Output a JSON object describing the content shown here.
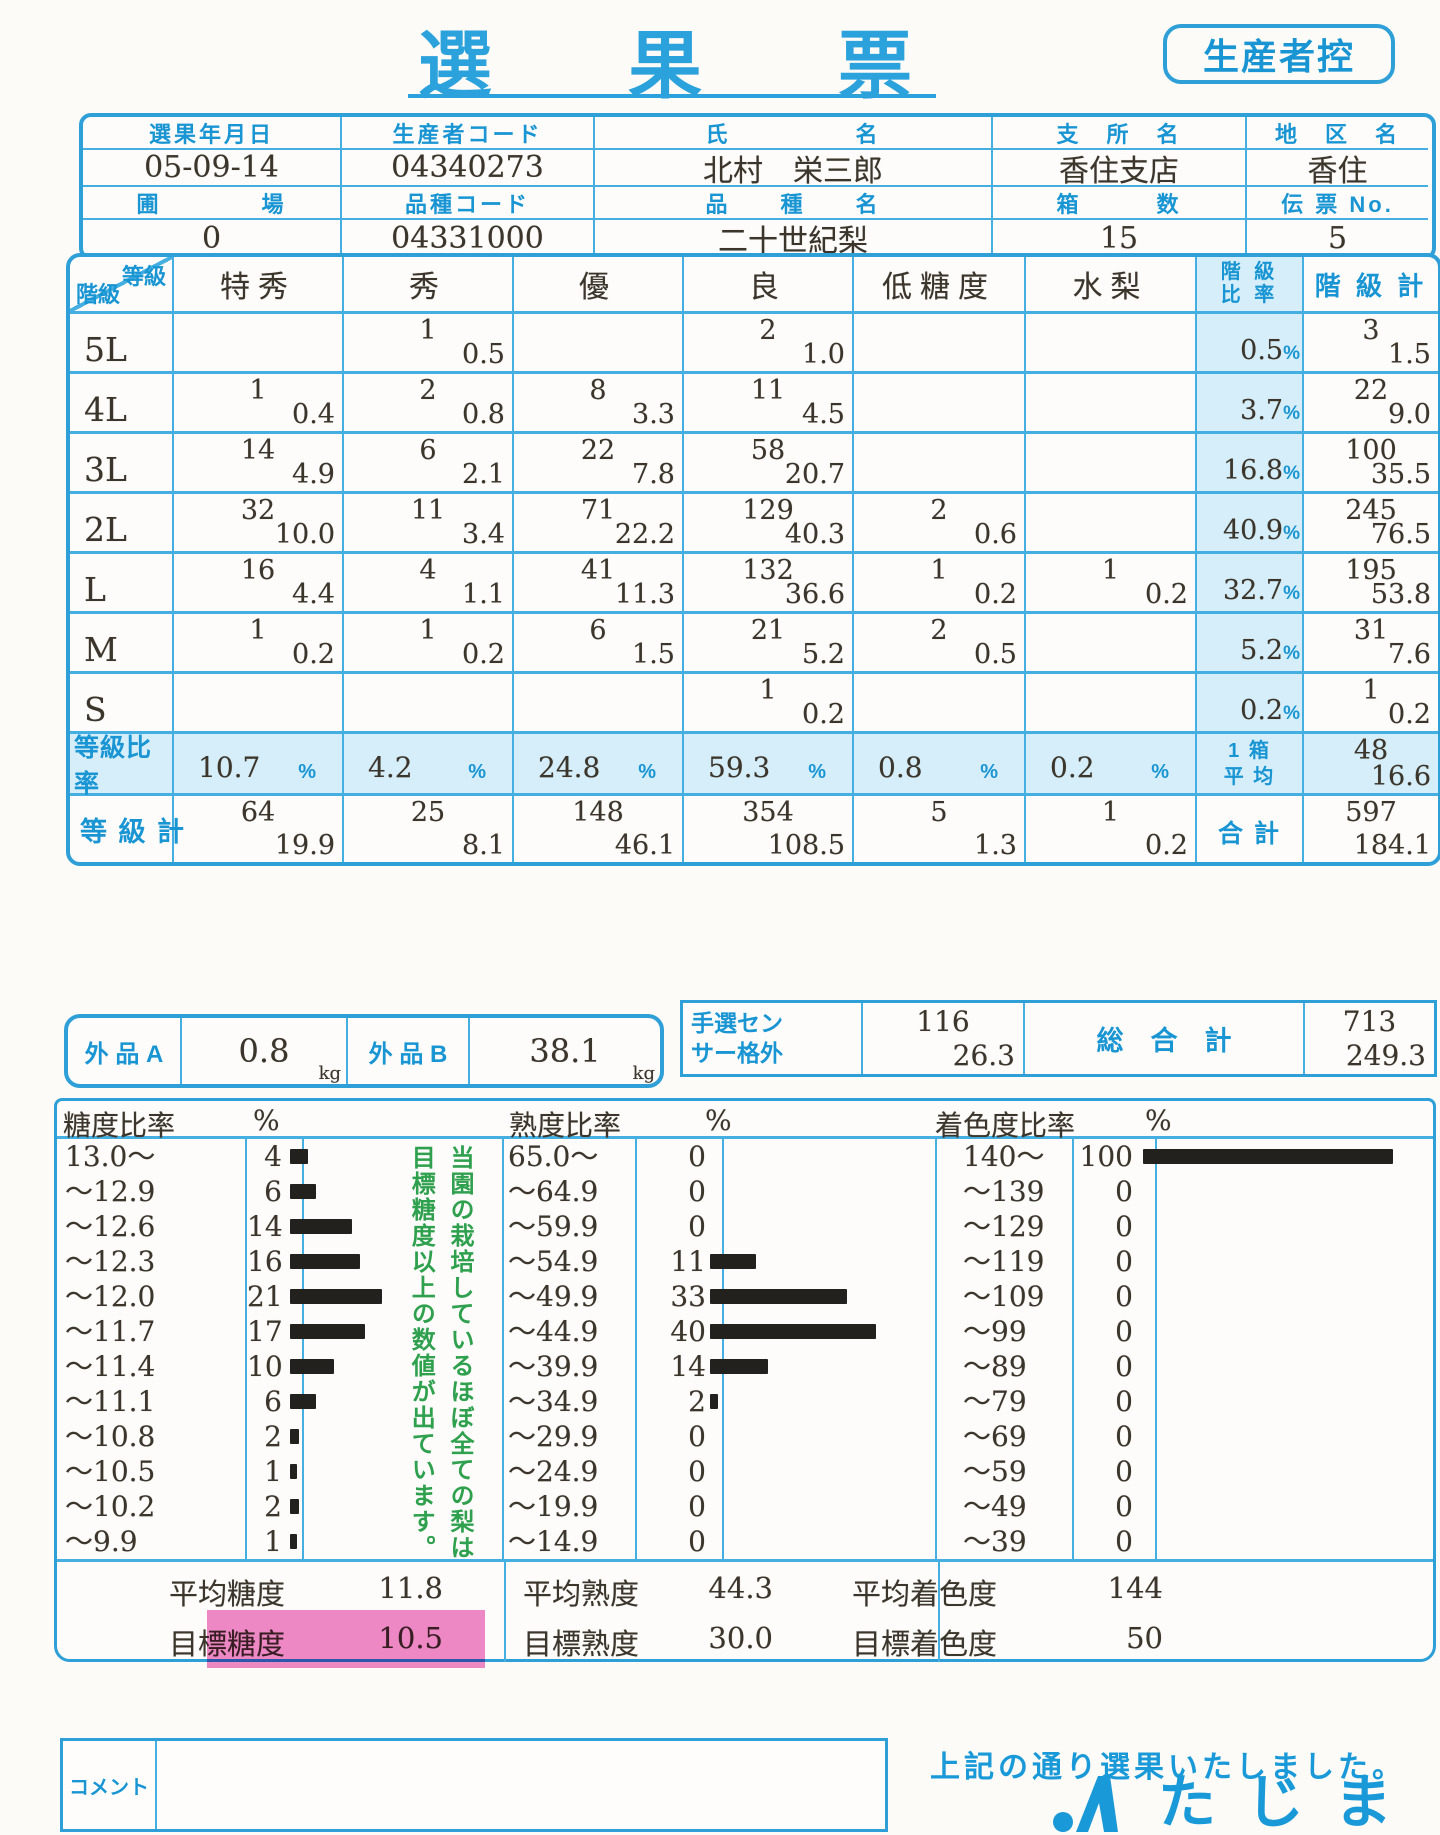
{
  "page": {
    "title": "選果票",
    "copy_badge": "生産者控"
  },
  "info": {
    "labels1": [
      "選果年月日",
      "生産者コード",
      "氏　　　　　名",
      "支　所　名",
      "地　区　名"
    ],
    "values1": [
      "05-09-14",
      "04340273",
      "北村　栄三郎",
      "香住支店",
      "香住"
    ],
    "labels2": [
      "圃　　　　場",
      "品種コード",
      "品　　種　　名",
      "箱　　　数",
      "伝 票 No."
    ],
    "values2": [
      "0",
      "04331000",
      "二十世紀梨",
      "15",
      "5"
    ]
  },
  "grade_table": {
    "corner_top": "等級",
    "corner_bottom": "階級",
    "grade_headers": [
      "特秀",
      "秀",
      "優",
      "良",
      "低糖度",
      "水梨"
    ],
    "ratio_header_lines": [
      "階 級",
      "比 率"
    ],
    "row_total_header": "階 級 計",
    "rows": [
      {
        "label": "5L",
        "cells": [
          null,
          [
            "1",
            "0.5"
          ],
          null,
          [
            "2",
            "1.0"
          ],
          null,
          null
        ],
        "ratio": "0.5",
        "total": [
          "3",
          "1.5"
        ]
      },
      {
        "label": "4L",
        "cells": [
          [
            "1",
            "0.4"
          ],
          [
            "2",
            "0.8"
          ],
          [
            "8",
            "3.3"
          ],
          [
            "11",
            "4.5"
          ],
          null,
          null
        ],
        "ratio": "3.7",
        "total": [
          "22",
          "9.0"
        ]
      },
      {
        "label": "3L",
        "cells": [
          [
            "14",
            "4.9"
          ],
          [
            "6",
            "2.1"
          ],
          [
            "22",
            "7.8"
          ],
          [
            "58",
            "20.7"
          ],
          null,
          null
        ],
        "ratio": "16.8",
        "total": [
          "100",
          "35.5"
        ]
      },
      {
        "label": "2L",
        "cells": [
          [
            "32",
            "10.0"
          ],
          [
            "11",
            "3.4"
          ],
          [
            "71",
            "22.2"
          ],
          [
            "129",
            "40.3"
          ],
          [
            "2",
            "0.6"
          ],
          null
        ],
        "ratio": "40.9",
        "total": [
          "245",
          "76.5"
        ]
      },
      {
        "label": "L",
        "cells": [
          [
            "16",
            "4.4"
          ],
          [
            "4",
            "1.1"
          ],
          [
            "41",
            "11.3"
          ],
          [
            "132",
            "36.6"
          ],
          [
            "1",
            "0.2"
          ],
          [
            "1",
            "0.2"
          ]
        ],
        "ratio": "32.7",
        "total": [
          "195",
          "53.8"
        ]
      },
      {
        "label": "M",
        "cells": [
          [
            "1",
            "0.2"
          ],
          [
            "1",
            "0.2"
          ],
          [
            "6",
            "1.5"
          ],
          [
            "21",
            "5.2"
          ],
          [
            "2",
            "0.5"
          ],
          null
        ],
        "ratio": "5.2",
        "total": [
          "31",
          "7.6"
        ]
      },
      {
        "label": "S",
        "cells": [
          null,
          null,
          null,
          [
            "1",
            "0.2"
          ],
          null,
          null
        ],
        "ratio": "0.2",
        "total": [
          "1",
          "0.2"
        ]
      }
    ],
    "ratio_row": {
      "label": "等級比率",
      "values": [
        "10.7",
        "4.2",
        "24.8",
        "59.3",
        "0.8",
        "0.2"
      ],
      "per_box_lines": [
        "1 箱",
        "平 均"
      ],
      "per_box": [
        "48",
        "16.6"
      ]
    },
    "total_row": {
      "label": "等 級 計",
      "cells": [
        [
          "64",
          "19.9"
        ],
        [
          "25",
          "8.1"
        ],
        [
          "148",
          "46.1"
        ],
        [
          "354",
          "108.5"
        ],
        [
          "5",
          "1.3"
        ],
        [
          "1",
          "0.2"
        ]
      ],
      "sum_label": "合 計",
      "sum": [
        "597",
        "184.1"
      ]
    }
  },
  "offgrade": {
    "a_label": "外 品 A",
    "a_value": "0.8",
    "a_unit": "kg",
    "b_label": "外 品 B",
    "b_value": "38.1",
    "b_unit": "kg",
    "hand_lines": [
      "手選セン",
      "サー格外"
    ],
    "hand_values": [
      "116",
      "26.3"
    ],
    "grand_label": "総　合　計",
    "grand_values": [
      "713",
      "249.3"
    ]
  },
  "histograms": {
    "sugar": {
      "title": "糖度比率",
      "unit": "%",
      "rows": [
        [
          "13.0～",
          4
        ],
        [
          "～12.9",
          6
        ],
        [
          "～12.6",
          14
        ],
        [
          "～12.3",
          16
        ],
        [
          "～12.0",
          21
        ],
        [
          "～11.7",
          17
        ],
        [
          "～11.4",
          10
        ],
        [
          "～11.1",
          6
        ],
        [
          "～10.8",
          2
        ],
        [
          "～10.5",
          1
        ],
        [
          "～10.2",
          2
        ],
        [
          "～9.9",
          1
        ]
      ]
    },
    "ripeness": {
      "title": "熟度比率",
      "unit": "%",
      "rows": [
        [
          "65.0～",
          0
        ],
        [
          "～64.9",
          0
        ],
        [
          "～59.9",
          0
        ],
        [
          "～54.9",
          11
        ],
        [
          "～49.9",
          33
        ],
        [
          "～44.9",
          40
        ],
        [
          "～39.9",
          14
        ],
        [
          "～34.9",
          2
        ],
        [
          "～29.9",
          0
        ],
        [
          "～24.9",
          0
        ],
        [
          "～19.9",
          0
        ],
        [
          "～14.9",
          0
        ]
      ]
    },
    "color": {
      "title": "着色度比率",
      "unit": "%",
      "rows": [
        [
          "140～",
          100
        ],
        [
          "～139",
          0
        ],
        [
          "～129",
          0
        ],
        [
          "～119",
          0
        ],
        [
          "～109",
          0
        ],
        [
          "～99",
          0
        ],
        [
          "～89",
          0
        ],
        [
          "～79",
          0
        ],
        [
          "～69",
          0
        ],
        [
          "～59",
          0
        ],
        [
          "～49",
          0
        ],
        [
          "～39",
          0
        ]
      ]
    }
  },
  "summary": {
    "sugar": {
      "avg_label": "平均糖度",
      "avg": "11.8",
      "target_label": "目標糖度",
      "target": "10.5"
    },
    "ripeness": {
      "avg_label": "平均熟度",
      "avg": "44.3",
      "target_label": "目標熟度",
      "target": "30.0"
    },
    "color": {
      "avg_label": "平均着色度",
      "avg": "144",
      "target_label": "目標着色度",
      "target": "50"
    }
  },
  "green_note": {
    "line1": "当園の栽培しているほぼ全ての梨は",
    "line2": "目標糖度以上の数値が出ています。"
  },
  "footer": {
    "comment_label": "コメント",
    "statement": "上記の通り選果いたしました。",
    "org_name": "たじま"
  },
  "chart_data": [
    {
      "type": "bar",
      "title": "糖度比率",
      "xlabel": "%",
      "orientation": "horizontal",
      "categories": [
        "13.0~",
        "~12.9",
        "~12.6",
        "~12.3",
        "~12.0",
        "~11.7",
        "~11.4",
        "~11.1",
        "~10.8",
        "~10.5",
        "~10.2",
        "~9.9"
      ],
      "values": [
        4,
        6,
        14,
        16,
        21,
        17,
        10,
        6,
        2,
        1,
        2,
        1
      ],
      "annotations": {
        "平均糖度": 11.8,
        "目標糖度": 10.5
      }
    },
    {
      "type": "bar",
      "title": "熟度比率",
      "xlabel": "%",
      "orientation": "horizontal",
      "categories": [
        "65.0~",
        "~64.9",
        "~59.9",
        "~54.9",
        "~49.9",
        "~44.9",
        "~39.9",
        "~34.9",
        "~29.9",
        "~24.9",
        "~19.9",
        "~14.9"
      ],
      "values": [
        0,
        0,
        0,
        11,
        33,
        40,
        14,
        2,
        0,
        0,
        0,
        0
      ],
      "annotations": {
        "平均熟度": 44.3,
        "目標熟度": 30.0
      }
    },
    {
      "type": "bar",
      "title": "着色度比率",
      "xlabel": "%",
      "orientation": "horizontal",
      "categories": [
        "140~",
        "~139",
        "~129",
        "~119",
        "~109",
        "~99",
        "~89",
        "~79",
        "~69",
        "~59",
        "~49",
        "~39"
      ],
      "values": [
        100,
        0,
        0,
        0,
        0,
        0,
        0,
        0,
        0,
        0,
        0,
        0
      ],
      "annotations": {
        "平均着色度": 144,
        "目標着色度": 50
      }
    }
  ],
  "colors": {
    "blue": "#1995d3",
    "border": "#44afe0",
    "shade": "#d5eef9",
    "pink": "#ef8ac9",
    "green": "#2fa04d",
    "ink": "#3b352c"
  }
}
